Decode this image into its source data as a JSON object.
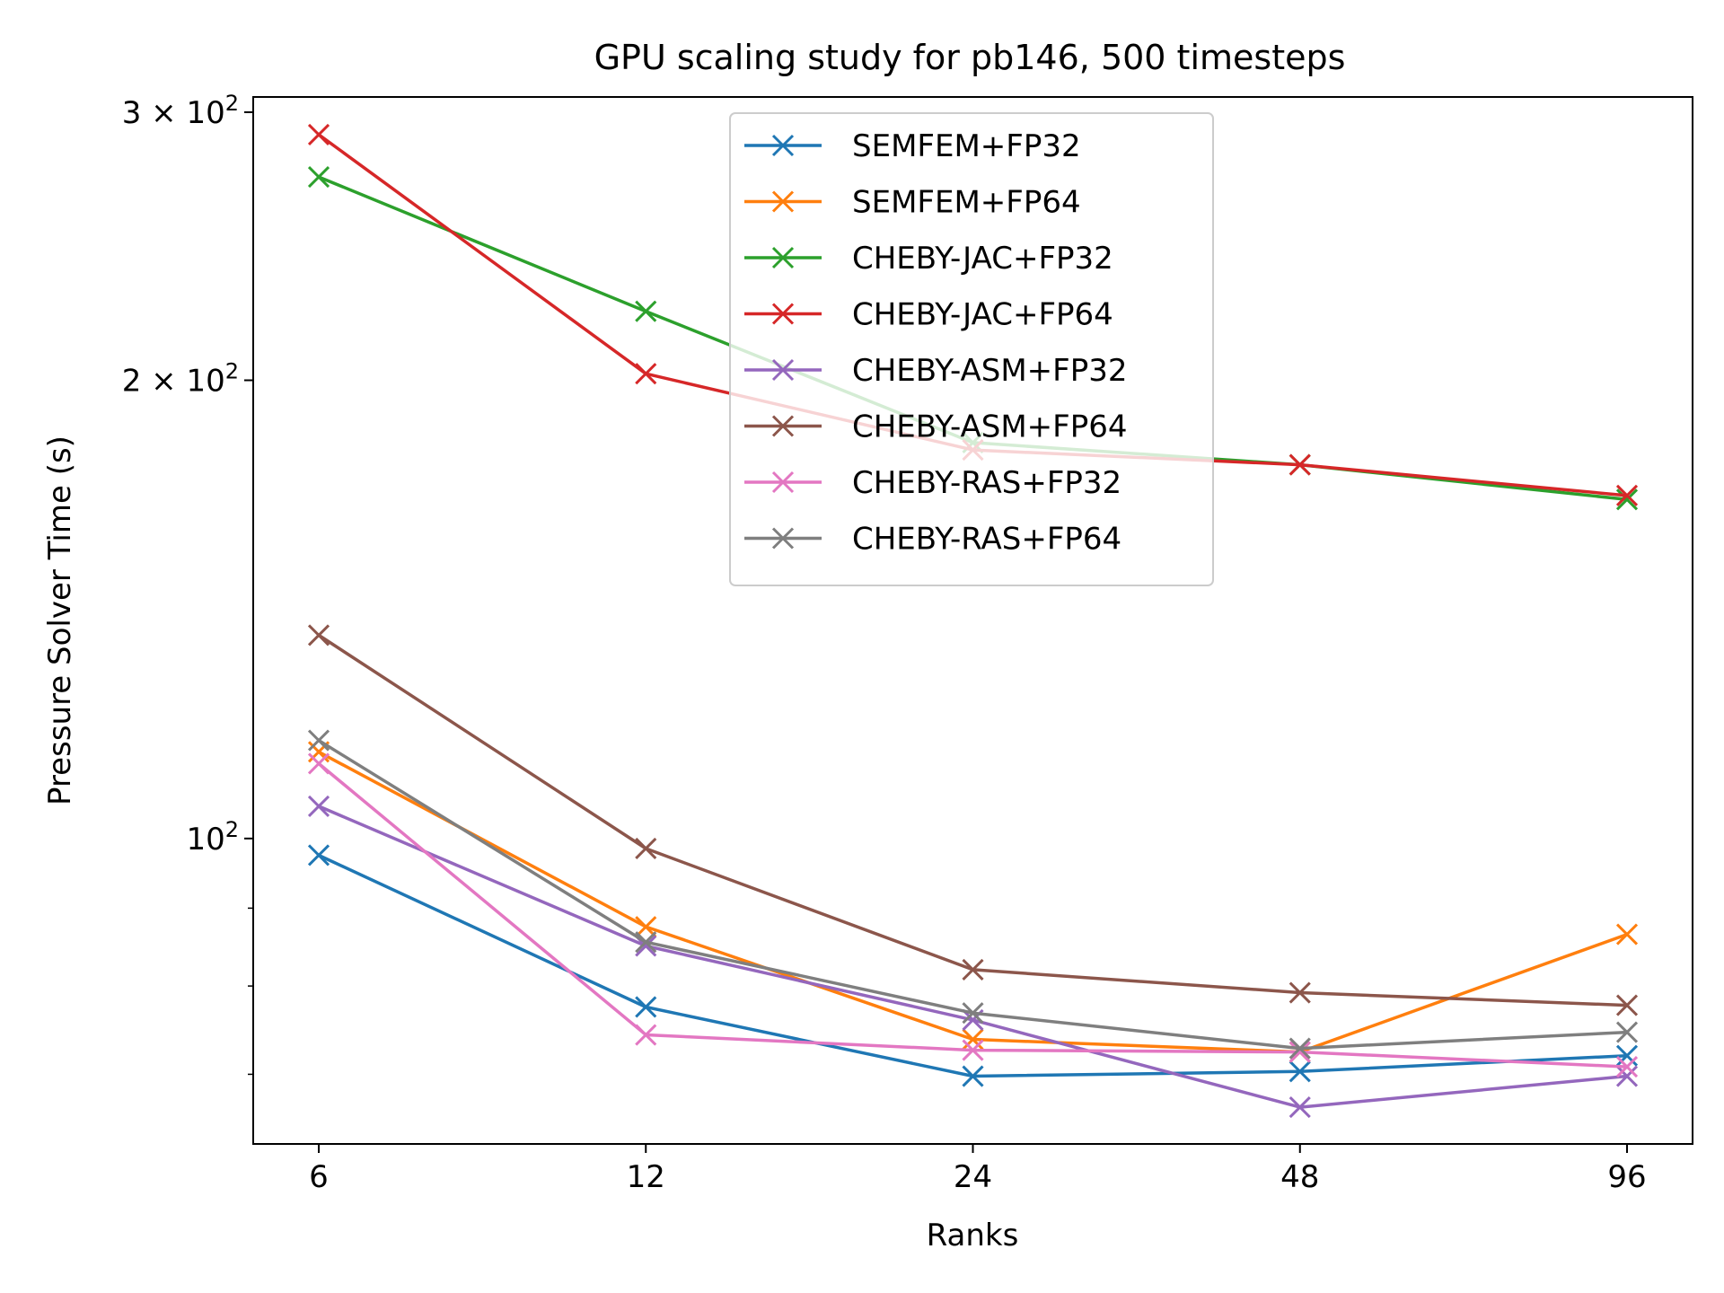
{
  "chart_data": {
    "type": "line",
    "title": "GPU scaling study for pb146, 500 timesteps",
    "xlabel": "Ranks",
    "ylabel": "Pressure Solver Time (s)",
    "x": [
      6,
      12,
      24,
      48,
      96
    ],
    "x_tick_labels": [
      "6",
      "12",
      "24",
      "48",
      "96"
    ],
    "x_scale": "log2",
    "y_scale": "log",
    "ylim": [
      63,
      307
    ],
    "y_major_ticks": [
      {
        "value": 100,
        "base": "10",
        "exp": "2"
      },
      {
        "value": 200,
        "base": "2 × 10",
        "exp": "2"
      },
      {
        "value": 300,
        "base": "3 × 10",
        "exp": "2"
      }
    ],
    "y_minor_ticks": [
      70,
      80,
      90
    ],
    "legend_position": "upper-center",
    "marker": "x",
    "series": [
      {
        "name": "SEMFEM+FP32",
        "color": "#1f77b4",
        "values": [
          97.5,
          77.5,
          69.8,
          70.3,
          72.0
        ]
      },
      {
        "name": "SEMFEM+FP64",
        "color": "#ff7f0e",
        "values": [
          114.0,
          87.5,
          73.8,
          72.4,
          86.5
        ]
      },
      {
        "name": "CHEBY-JAC+FP32",
        "color": "#2ca02c",
        "values": [
          272.0,
          222.0,
          182.0,
          176.0,
          167.0
        ]
      },
      {
        "name": "CHEBY-JAC+FP64",
        "color": "#d62728",
        "values": [
          290.0,
          202.0,
          180.0,
          176.0,
          168.0
        ]
      },
      {
        "name": "CHEBY-ASM+FP32",
        "color": "#9467bd",
        "values": [
          105.0,
          85.0,
          76.0,
          66.6,
          69.8
        ]
      },
      {
        "name": "CHEBY-ASM+FP64",
        "color": "#8c564b",
        "values": [
          136.0,
          98.5,
          82.0,
          79.2,
          77.7
        ]
      },
      {
        "name": "CHEBY-RAS+FP32",
        "color": "#e377c2",
        "values": [
          112.0,
          74.3,
          72.6,
          72.4,
          70.8
        ]
      },
      {
        "name": "CHEBY-RAS+FP64",
        "color": "#7f7f7f",
        "values": [
          116.0,
          85.5,
          76.8,
          72.8,
          74.6
        ]
      }
    ]
  }
}
